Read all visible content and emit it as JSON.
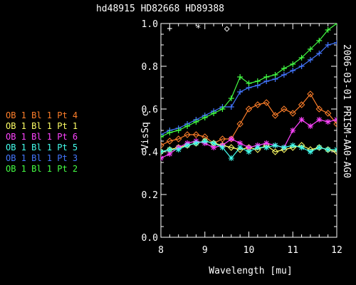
{
  "chart_data": {
    "type": "line",
    "title": "hd48915   HD82668   HD89388",
    "xlabel": "Wavelength [mu]",
    "ylabel": "VisSq c",
    "side_label": "2006-03-01 PRISM-AA0-AG0",
    "xlim": [
      8,
      12
    ],
    "ylim": [
      0.0,
      1.0
    ],
    "x_ticks": [
      "8",
      "9",
      "10",
      "11",
      "12"
    ],
    "y_ticks": [
      "0.0",
      "0.2",
      "0.4",
      "0.6",
      "0.8",
      "1.0"
    ],
    "calibrator_markers": [
      {
        "symbol": "+",
        "x": 8.2,
        "y": 0.98,
        "color": "#ffffff"
      },
      {
        "symbol": "*",
        "x": 8.85,
        "y": 0.98,
        "color": "#ffffff"
      },
      {
        "symbol": "◇",
        "x": 9.5,
        "y": 0.98,
        "color": "#ffffff"
      }
    ],
    "series": [
      {
        "name": "OB  1  Bl  1  Pt  4",
        "color": "#ff7f2a",
        "marker": "diamond",
        "x": [
          8.0,
          8.2,
          8.4,
          8.6,
          8.8,
          9.0,
          9.2,
          9.4,
          9.6,
          9.8,
          10.0,
          10.2,
          10.4,
          10.6,
          10.8,
          11.0,
          11.2,
          11.4,
          11.6,
          11.8,
          12.0
        ],
        "values": [
          0.43,
          0.45,
          0.46,
          0.48,
          0.48,
          0.47,
          0.44,
          0.46,
          0.46,
          0.53,
          0.6,
          0.62,
          0.63,
          0.57,
          0.6,
          0.58,
          0.62,
          0.67,
          0.6,
          0.58,
          0.53
        ]
      },
      {
        "name": "OB  1  Bl  1  Pt  1",
        "color": "#ffff66",
        "marker": "diamond",
        "x": [
          8.0,
          8.2,
          8.4,
          8.6,
          8.8,
          9.0,
          9.2,
          9.4,
          9.6,
          9.8,
          10.0,
          10.2,
          10.4,
          10.6,
          10.8,
          11.0,
          11.2,
          11.4,
          11.6,
          11.8,
          12.0
        ],
        "values": [
          0.4,
          0.41,
          0.42,
          0.43,
          0.44,
          0.45,
          0.44,
          0.43,
          0.42,
          0.41,
          0.42,
          0.41,
          0.43,
          0.4,
          0.41,
          0.42,
          0.43,
          0.41,
          0.42,
          0.41,
          0.4
        ]
      },
      {
        "name": "OB  1  Bl  1  Pt  6",
        "color": "#ff44ff",
        "marker": "star",
        "x": [
          8.0,
          8.2,
          8.4,
          8.6,
          8.8,
          9.0,
          9.2,
          9.4,
          9.6,
          9.8,
          10.0,
          10.2,
          10.4,
          10.6,
          10.8,
          11.0,
          11.2,
          11.4,
          11.6,
          11.8,
          12.0
        ],
        "values": [
          0.37,
          0.39,
          0.42,
          0.44,
          0.45,
          0.44,
          0.42,
          0.43,
          0.46,
          0.44,
          0.42,
          0.43,
          0.44,
          0.43,
          0.42,
          0.5,
          0.55,
          0.52,
          0.55,
          0.54,
          0.55
        ]
      },
      {
        "name": "OB  1  Bl  1  Pt  5",
        "color": "#44ffee",
        "marker": "star",
        "x": [
          8.0,
          8.2,
          8.4,
          8.6,
          8.8,
          9.0,
          9.2,
          9.4,
          9.6,
          9.8,
          10.0,
          10.2,
          10.4,
          10.6,
          10.8,
          11.0,
          11.2,
          11.4,
          11.6,
          11.8,
          12.0
        ],
        "values": [
          0.4,
          0.41,
          0.41,
          0.43,
          0.44,
          0.45,
          0.44,
          0.42,
          0.37,
          0.42,
          0.4,
          0.42,
          0.42,
          0.43,
          0.42,
          0.43,
          0.42,
          0.4,
          0.42,
          0.41,
          0.41
        ]
      },
      {
        "name": "OB  1  Bl  1  Pt  3",
        "color": "#4477ff",
        "marker": "plus",
        "x": [
          8.0,
          8.2,
          8.4,
          8.6,
          8.8,
          9.0,
          9.2,
          9.4,
          9.6,
          9.8,
          10.0,
          10.2,
          10.4,
          10.6,
          10.8,
          11.0,
          11.2,
          11.4,
          11.6,
          11.8,
          12.0
        ],
        "values": [
          0.48,
          0.5,
          0.51,
          0.53,
          0.55,
          0.57,
          0.59,
          0.61,
          0.61,
          0.68,
          0.7,
          0.71,
          0.73,
          0.74,
          0.76,
          0.78,
          0.8,
          0.83,
          0.86,
          0.9,
          0.91
        ]
      },
      {
        "name": "OB  1  Bl  1  Pt  2",
        "color": "#44ff44",
        "marker": "plus",
        "x": [
          8.0,
          8.2,
          8.4,
          8.6,
          8.8,
          9.0,
          9.2,
          9.4,
          9.6,
          9.8,
          10.0,
          10.2,
          10.4,
          10.6,
          10.8,
          11.0,
          11.2,
          11.4,
          11.6,
          11.8,
          12.0
        ],
        "values": [
          0.47,
          0.49,
          0.5,
          0.52,
          0.54,
          0.56,
          0.58,
          0.6,
          0.65,
          0.75,
          0.72,
          0.73,
          0.75,
          0.76,
          0.79,
          0.81,
          0.84,
          0.88,
          0.92,
          0.97,
          1.0
        ]
      }
    ]
  }
}
